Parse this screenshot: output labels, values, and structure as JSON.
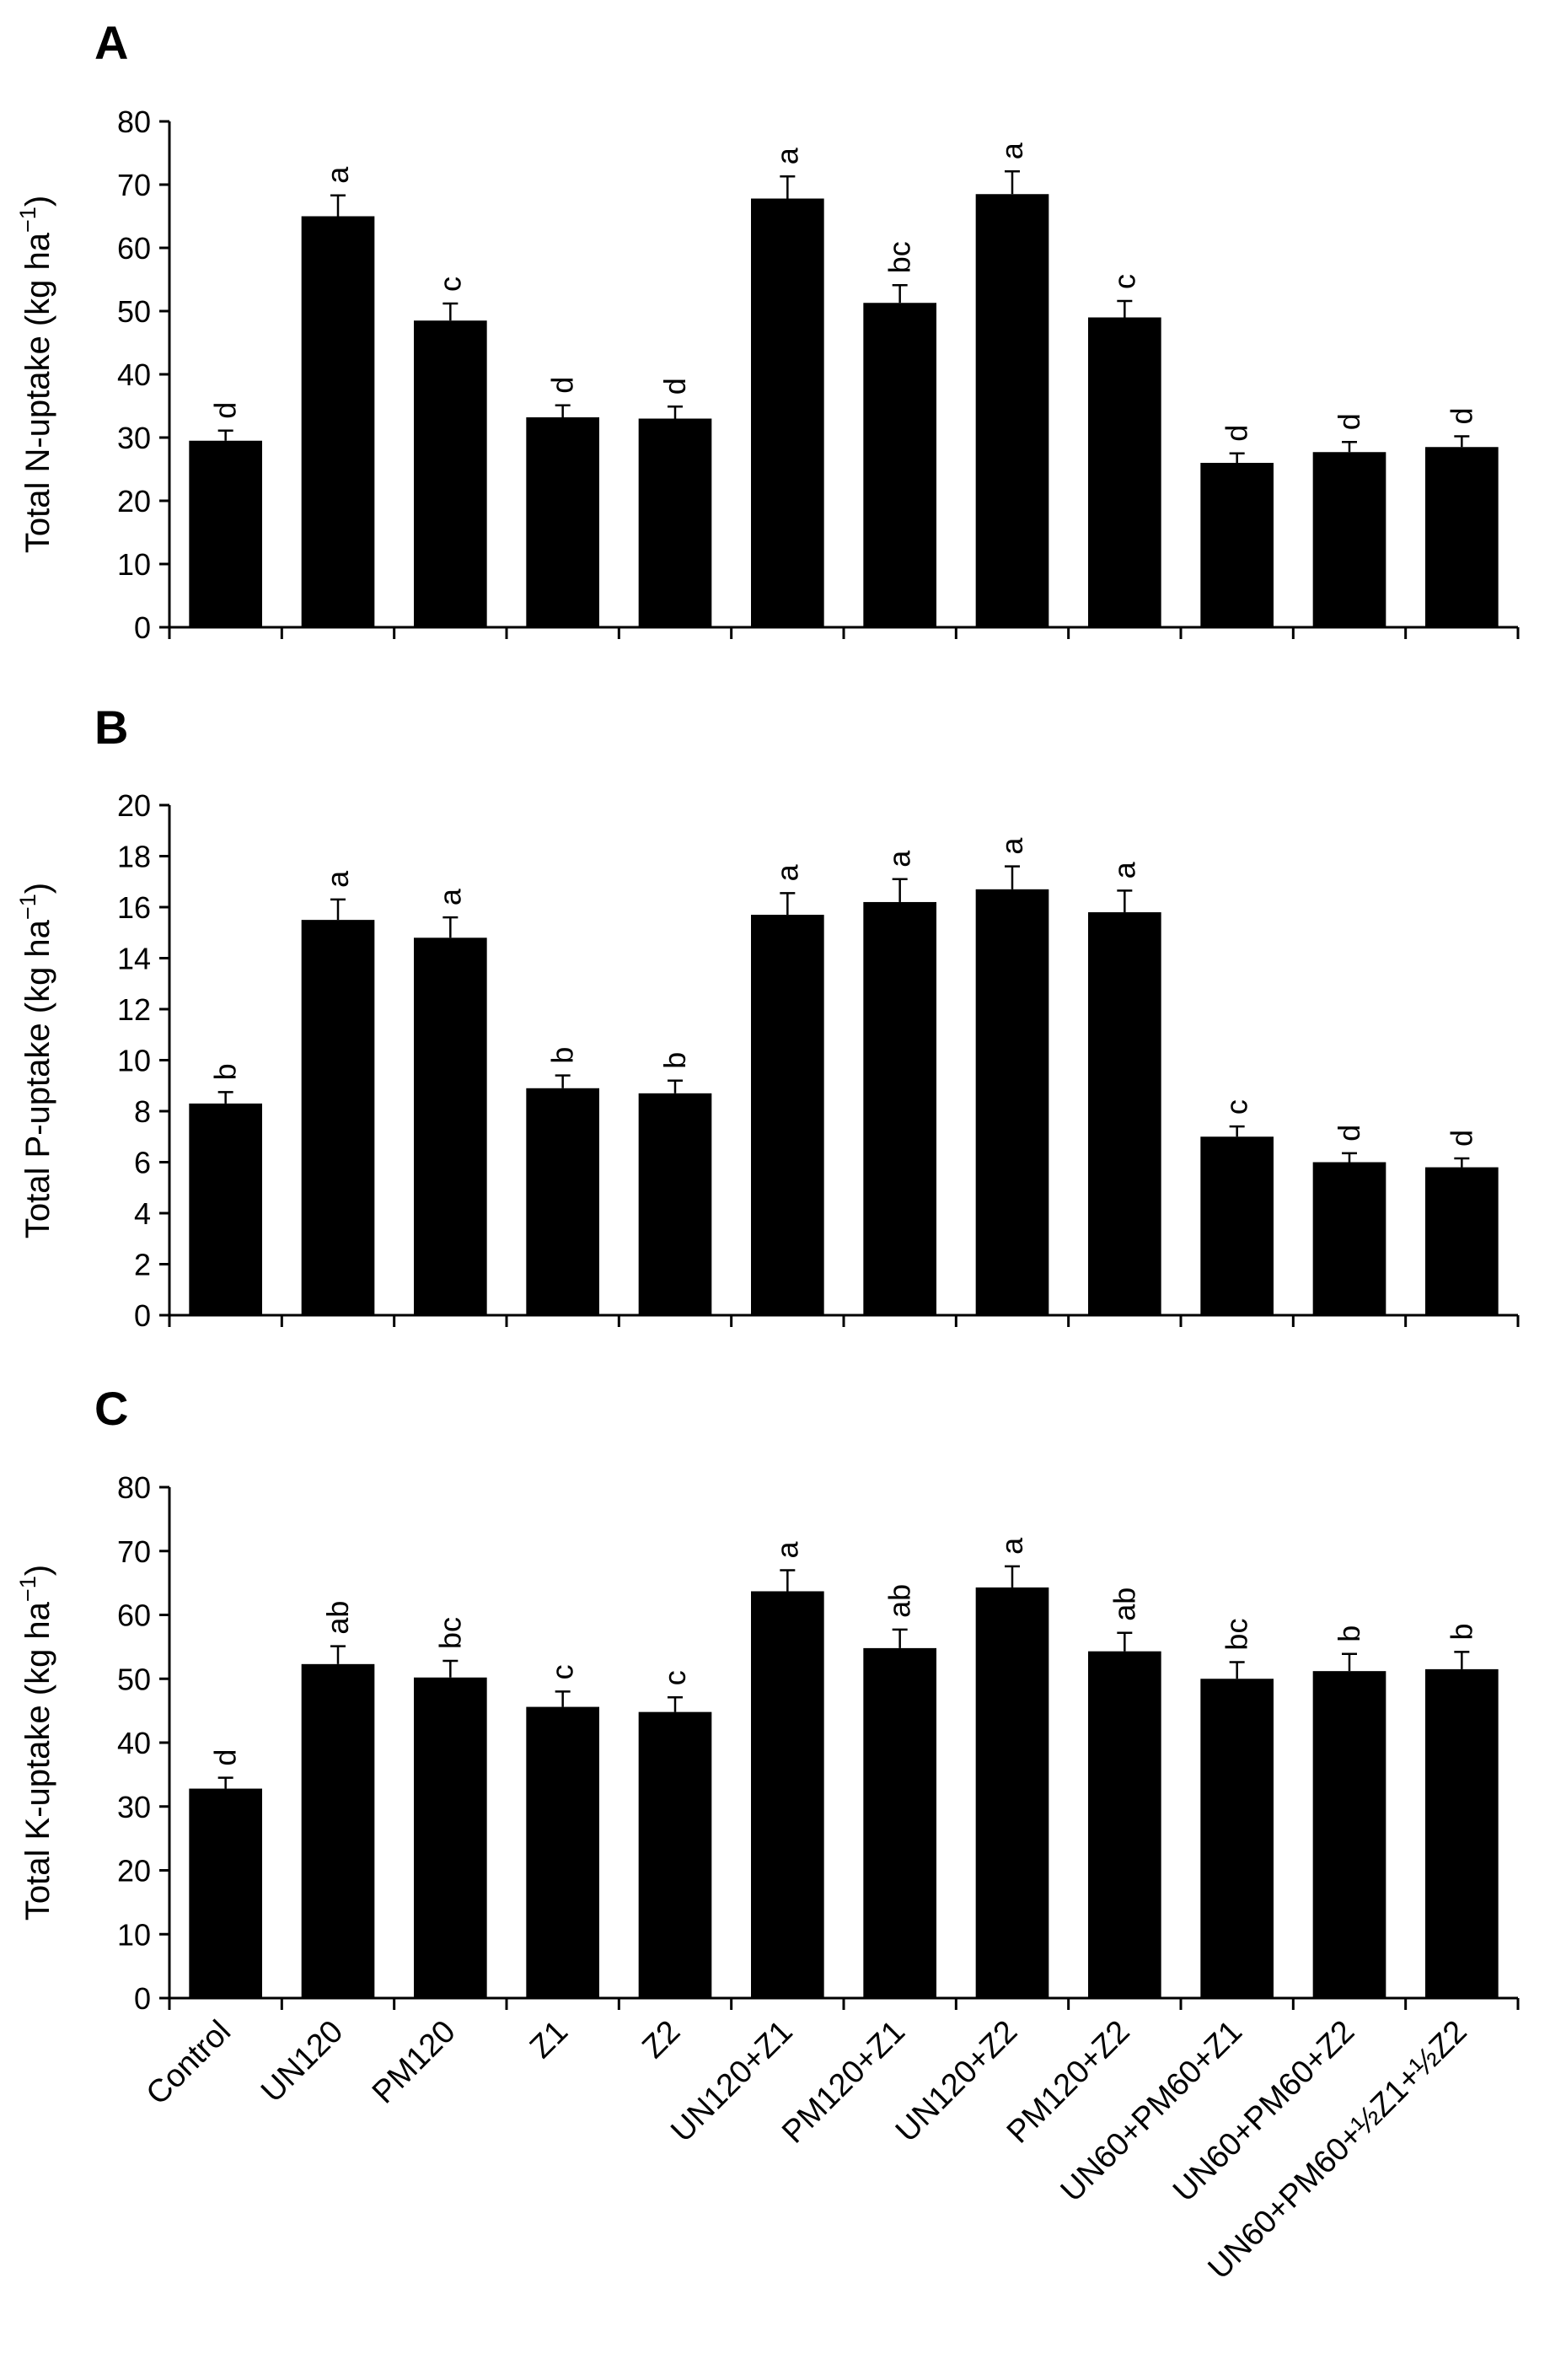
{
  "figure": {
    "background": "#ffffff",
    "bar_color": "#000000"
  },
  "chart_data": [
    {
      "type": "bar",
      "panel_label": "A",
      "ylabel": "Total N-uptake (kg ha",
      "ylabel_sup": "−1",
      "ylabel_close": ")",
      "ylim": [
        0,
        80
      ],
      "yticks": [
        "0",
        "10",
        "20",
        "30",
        "40",
        "50",
        "60",
        "70",
        "80"
      ],
      "categories": [
        "Control",
        "UN120",
        "PM120",
        "Z1",
        "Z2",
        "UN120+Z1",
        "PM120+Z1",
        "UN120+Z2",
        "PM120+Z2",
        "UN60+PM60+Z1",
        "UN60+PM60+Z2",
        "UN60+PM60+½Z1+½Z2"
      ],
      "values": [
        29.5,
        65,
        48.5,
        33.2,
        33,
        67.8,
        51.3,
        68.5,
        49,
        26,
        27.7,
        28.5
      ],
      "errors": [
        1.6,
        3.3,
        2.7,
        1.9,
        1.9,
        3.5,
        2.8,
        3.6,
        2.6,
        1.5,
        1.6,
        1.7
      ],
      "labels": [
        "d",
        "a",
        "c",
        "d",
        "d",
        "a",
        "bc",
        "a",
        "c",
        "d",
        "d",
        "d"
      ],
      "show_category_labels": false
    },
    {
      "type": "bar",
      "panel_label": "B",
      "ylabel": "Total P-uptake (kg ha",
      "ylabel_sup": "−1",
      "ylabel_close": ")",
      "ylim": [
        0,
        20
      ],
      "yticks": [
        "0",
        "2",
        "4",
        "6",
        "8",
        "10",
        "12",
        "14",
        "16",
        "18",
        "20"
      ],
      "categories": [
        "Control",
        "UN120",
        "PM120",
        "Z1",
        "Z2",
        "UN120+Z1",
        "PM120+Z1",
        "UN120+Z2",
        "PM120+Z2",
        "UN60+PM60+Z1",
        "UN60+PM60+Z2",
        "UN60+PM60+½Z1+½Z2"
      ],
      "values": [
        8.3,
        15.5,
        14.8,
        8.9,
        8.7,
        15.7,
        16.2,
        16.7,
        15.8,
        7,
        6,
        5.8
      ],
      "errors": [
        0.45,
        0.8,
        0.8,
        0.5,
        0.5,
        0.85,
        0.9,
        0.9,
        0.85,
        0.4,
        0.35,
        0.35
      ],
      "labels": [
        "b",
        "a",
        "a",
        "b",
        "b",
        "a",
        "a",
        "a",
        "a",
        "c",
        "d",
        "d"
      ],
      "show_category_labels": false
    },
    {
      "type": "bar",
      "panel_label": "C",
      "ylabel": "Total K-uptake (kg ha",
      "ylabel_sup": "−1",
      "ylabel_close": ")",
      "ylim": [
        0,
        80
      ],
      "yticks": [
        "0",
        "10",
        "20",
        "30",
        "40",
        "50",
        "60",
        "70",
        "80"
      ],
      "categories": [
        "Control",
        "UN120",
        "PM120",
        "Z1",
        "Z2",
        "UN120+Z1",
        "PM120+Z1",
        "UN120+Z2",
        "PM120+Z2",
        "UN60+PM60+Z1",
        "UN60+PM60+Z2",
        "UN60+PM60+½Z1+½Z2"
      ],
      "values": [
        32.8,
        52.3,
        50.2,
        45.6,
        44.8,
        63.7,
        54.8,
        64.3,
        54.3,
        50,
        51.2,
        51.5
      ],
      "errors": [
        1.7,
        2.8,
        2.6,
        2.4,
        2.3,
        3.3,
        2.9,
        3.3,
        2.9,
        2.6,
        2.7,
        2.7
      ],
      "labels": [
        "d",
        "ab",
        "bc",
        "c",
        "c",
        "a",
        "ab",
        "a",
        "ab",
        "bc",
        "b",
        "b"
      ],
      "show_category_labels": true
    }
  ]
}
